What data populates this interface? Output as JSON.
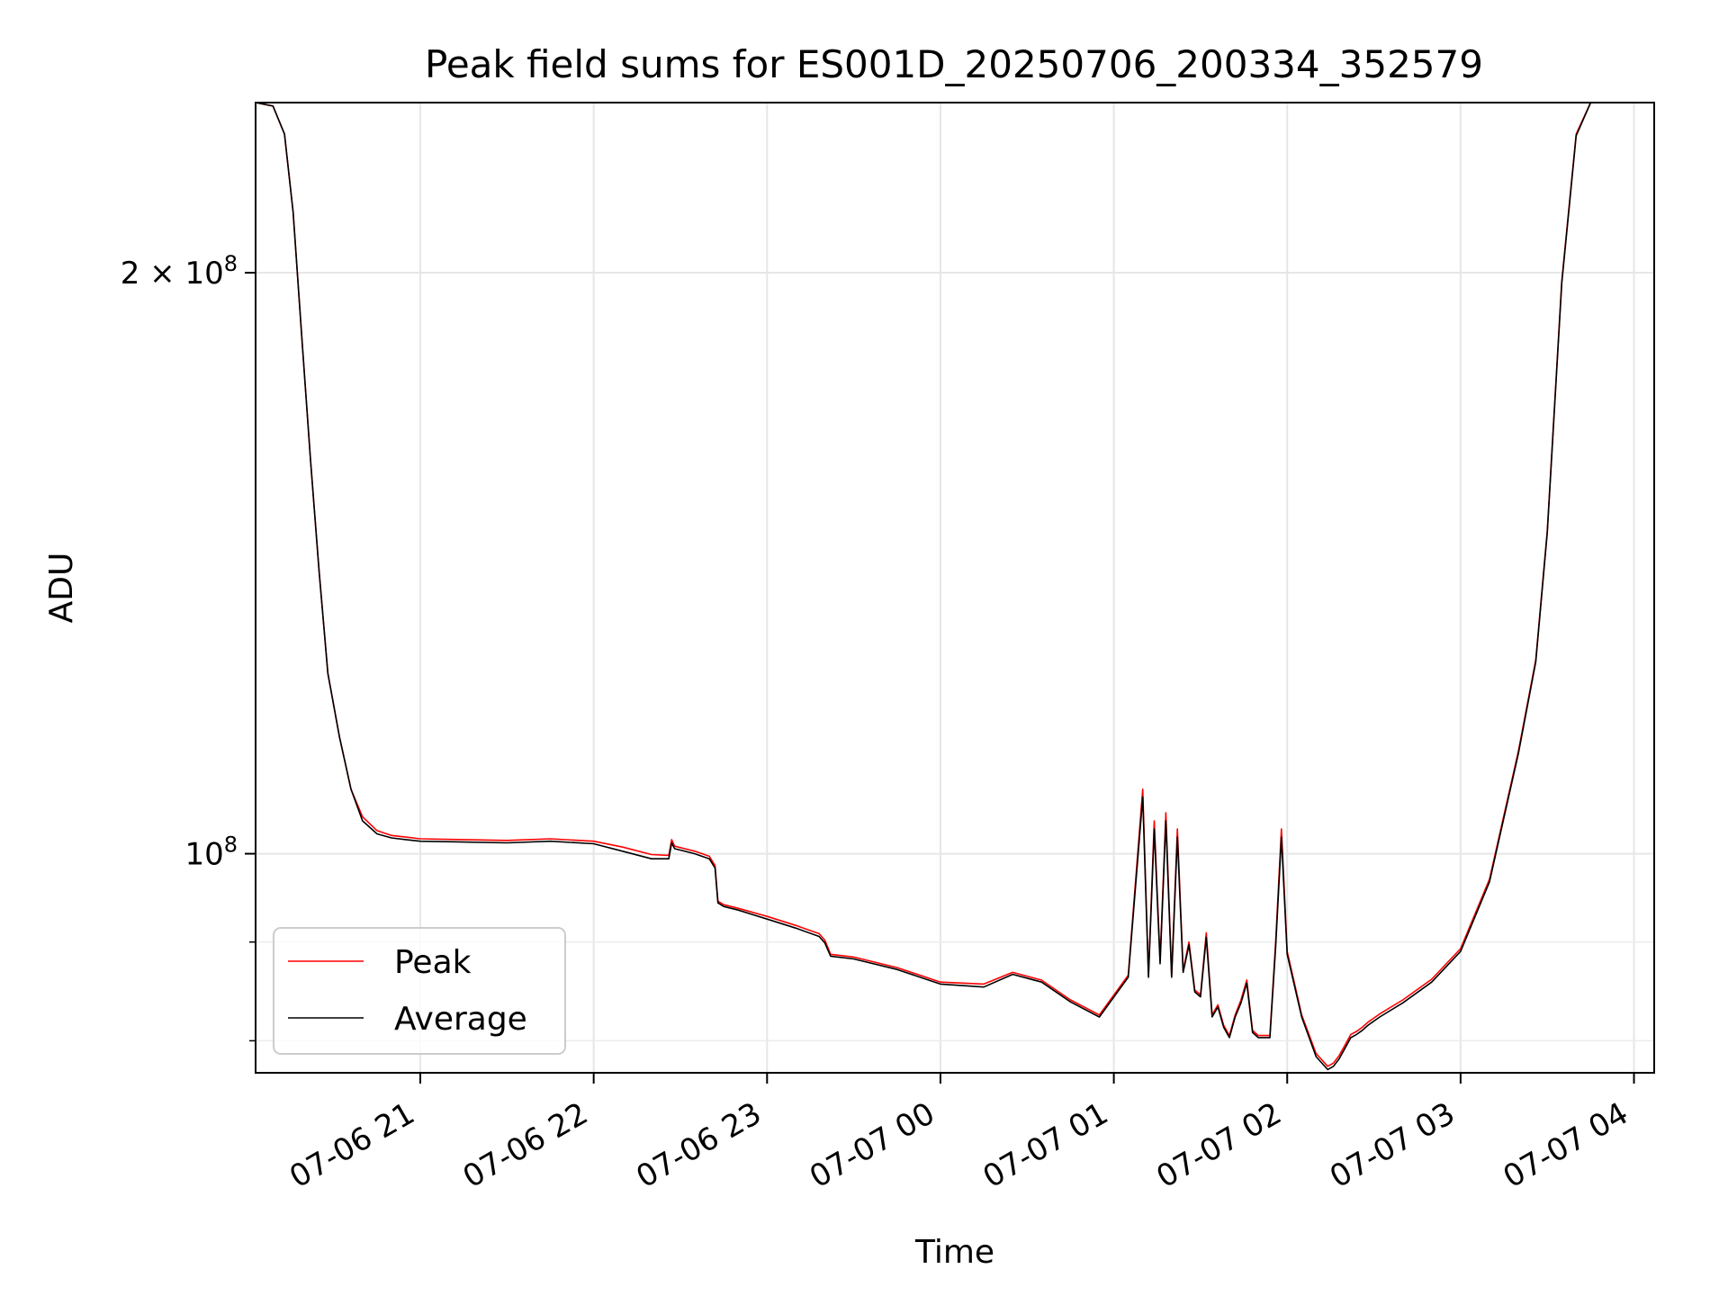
{
  "chart_data": {
    "type": "line",
    "title": "Peak field sums for ES001D_20250706_200334_352579",
    "xlabel": "Time",
    "ylabel": "ADU",
    "xlim": [
      "2025-07-06 20:03",
      "2025-07-07 04:07"
    ],
    "ylim": [
      77000000,
      245000000
    ],
    "yscale": "log",
    "grid": true,
    "legend_position": "lower-left",
    "x_ticks": [
      {
        "value": "2025-07-06 21:00",
        "label": "07-06 21"
      },
      {
        "value": "2025-07-06 22:00",
        "label": "07-06 22"
      },
      {
        "value": "2025-07-06 23:00",
        "label": "07-06 23"
      },
      {
        "value": "2025-07-07 00:00",
        "label": "07-07 00"
      },
      {
        "value": "2025-07-07 01:00",
        "label": "07-07 01"
      },
      {
        "value": "2025-07-07 02:00",
        "label": "07-07 02"
      },
      {
        "value": "2025-07-07 03:00",
        "label": "07-07 03"
      },
      {
        "value": "2025-07-07 04:00",
        "label": "07-07 04"
      }
    ],
    "y_major_ticks": [
      {
        "value": 100000000,
        "base": "10",
        "exponent": "8",
        "mantissa": ""
      },
      {
        "value": 200000000,
        "base": "10",
        "exponent": "8",
        "mantissa": "2"
      }
    ],
    "y_minor_ticks": [
      80000000,
      90000000
    ],
    "series": [
      {
        "name": "Peak",
        "color": "#ff0000",
        "x": [
          "2025-07-06 20:03",
          "2025-07-06 20:09",
          "2025-07-06 20:13",
          "2025-07-06 20:16",
          "2025-07-06 20:19",
          "2025-07-06 20:22",
          "2025-07-06 20:25",
          "2025-07-06 20:28",
          "2025-07-06 20:32",
          "2025-07-06 20:36",
          "2025-07-06 20:40",
          "2025-07-06 20:45",
          "2025-07-06 20:50",
          "2025-07-06 20:55",
          "2025-07-06 21:00",
          "2025-07-06 21:15",
          "2025-07-06 21:30",
          "2025-07-06 21:45",
          "2025-07-06 22:00",
          "2025-07-06 22:10",
          "2025-07-06 22:20",
          "2025-07-06 22:26",
          "2025-07-06 22:27",
          "2025-07-06 22:28",
          "2025-07-06 22:35",
          "2025-07-06 22:40",
          "2025-07-06 22:42",
          "2025-07-06 22:43",
          "2025-07-06 22:45",
          "2025-07-06 22:50",
          "2025-07-06 23:00",
          "2025-07-06 23:10",
          "2025-07-06 23:18",
          "2025-07-06 23:20",
          "2025-07-06 23:22",
          "2025-07-06 23:30",
          "2025-07-06 23:45",
          "2025-07-07 00:00",
          "2025-07-07 00:15",
          "2025-07-07 00:25",
          "2025-07-07 00:35",
          "2025-07-07 00:45",
          "2025-07-07 00:55",
          "2025-07-07 01:05",
          "2025-07-07 01:10",
          "2025-07-07 01:12",
          "2025-07-07 01:14",
          "2025-07-07 01:16",
          "2025-07-07 01:18",
          "2025-07-07 01:20",
          "2025-07-07 01:22",
          "2025-07-07 01:24",
          "2025-07-07 01:26",
          "2025-07-07 01:28",
          "2025-07-07 01:30",
          "2025-07-07 01:32",
          "2025-07-07 01:34",
          "2025-07-07 01:36",
          "2025-07-07 01:38",
          "2025-07-07 01:40",
          "2025-07-07 01:42",
          "2025-07-07 01:44",
          "2025-07-07 01:46",
          "2025-07-07 01:48",
          "2025-07-07 01:50",
          "2025-07-07 01:52",
          "2025-07-07 01:54",
          "2025-07-07 01:56",
          "2025-07-07 01:58",
          "2025-07-07 02:00",
          "2025-07-07 02:05",
          "2025-07-07 02:10",
          "2025-07-07 02:14",
          "2025-07-07 02:16",
          "2025-07-07 02:18",
          "2025-07-07 02:20",
          "2025-07-07 02:22",
          "2025-07-07 02:24",
          "2025-07-07 02:26",
          "2025-07-07 02:28",
          "2025-07-07 02:32",
          "2025-07-07 02:40",
          "2025-07-07 02:50",
          "2025-07-07 03:00",
          "2025-07-07 03:10",
          "2025-07-07 03:20",
          "2025-07-07 03:26",
          "2025-07-07 03:30",
          "2025-07-07 03:35",
          "2025-07-07 03:40",
          "2025-07-07 03:45",
          "2025-07-07 03:50",
          "2025-07-07 03:55",
          "2025-07-07 04:00",
          "2025-07-07 04:03",
          "2025-07-07 04:07"
        ],
        "y": [
          245000000,
          244000000,
          236000000,
          215000000,
          185000000,
          160000000,
          140000000,
          124000000,
          115000000,
          108000000,
          104500000,
          102800000,
          102200000,
          102000000,
          101800000,
          101700000,
          101600000,
          101800000,
          101500000,
          100800000,
          99900000,
          99800000,
          101700000,
          100900000,
          100300000,
          99700000,
          98600000,
          94500000,
          94100000,
          93700000,
          92800000,
          91800000,
          90900000,
          90200000,
          88700000,
          88400000,
          87300000,
          85800000,
          85600000,
          86800000,
          86000000,
          84000000,
          82500000,
          86500000,
          108000000,
          86500000,
          104000000,
          88000000,
          105000000,
          86500000,
          103000000,
          87000000,
          90000000,
          85000000,
          84500000,
          91000000,
          82500000,
          83500000,
          81500000,
          80500000,
          82500000,
          84000000,
          86000000,
          81000000,
          80500000,
          80500000,
          80500000,
          90000000,
          103000000,
          89000000,
          82500000,
          78800000,
          77600000,
          77900000,
          78600000,
          79600000,
          80600000,
          80900000,
          81300000,
          81800000,
          82600000,
          84000000,
          86100000,
          89300000,
          97000000,
          113000000,
          126000000,
          147000000,
          198000000,
          236000000,
          245000000,
          245000000,
          245000000,
          245000000,
          245000000,
          245000000
        ]
      },
      {
        "name": "Average",
        "color": "#000000",
        "x": [
          "2025-07-06 20:03",
          "2025-07-06 20:09",
          "2025-07-06 20:13",
          "2025-07-06 20:16",
          "2025-07-06 20:19",
          "2025-07-06 20:22",
          "2025-07-06 20:25",
          "2025-07-06 20:28",
          "2025-07-06 20:32",
          "2025-07-06 20:36",
          "2025-07-06 20:40",
          "2025-07-06 20:45",
          "2025-07-06 20:50",
          "2025-07-06 20:55",
          "2025-07-06 21:00",
          "2025-07-06 21:15",
          "2025-07-06 21:30",
          "2025-07-06 21:45",
          "2025-07-06 22:00",
          "2025-07-06 22:10",
          "2025-07-06 22:20",
          "2025-07-06 22:26",
          "2025-07-06 22:27",
          "2025-07-06 22:28",
          "2025-07-06 22:35",
          "2025-07-06 22:40",
          "2025-07-06 22:42",
          "2025-07-06 22:43",
          "2025-07-06 22:45",
          "2025-07-06 22:50",
          "2025-07-06 23:00",
          "2025-07-06 23:10",
          "2025-07-06 23:18",
          "2025-07-06 23:20",
          "2025-07-06 23:22",
          "2025-07-06 23:30",
          "2025-07-06 23:45",
          "2025-07-07 00:00",
          "2025-07-07 00:15",
          "2025-07-07 00:25",
          "2025-07-07 00:35",
          "2025-07-07 00:45",
          "2025-07-07 00:55",
          "2025-07-07 01:05",
          "2025-07-07 01:10",
          "2025-07-07 01:12",
          "2025-07-07 01:14",
          "2025-07-07 01:16",
          "2025-07-07 01:18",
          "2025-07-07 01:20",
          "2025-07-07 01:22",
          "2025-07-07 01:24",
          "2025-07-07 01:26",
          "2025-07-07 01:28",
          "2025-07-07 01:30",
          "2025-07-07 01:32",
          "2025-07-07 01:34",
          "2025-07-07 01:36",
          "2025-07-07 01:38",
          "2025-07-07 01:40",
          "2025-07-07 01:42",
          "2025-07-07 01:44",
          "2025-07-07 01:46",
          "2025-07-07 01:48",
          "2025-07-07 01:50",
          "2025-07-07 01:52",
          "2025-07-07 01:54",
          "2025-07-07 01:56",
          "2025-07-07 01:58",
          "2025-07-07 02:00",
          "2025-07-07 02:05",
          "2025-07-07 02:10",
          "2025-07-07 02:14",
          "2025-07-07 02:16",
          "2025-07-07 02:18",
          "2025-07-07 02:20",
          "2025-07-07 02:22",
          "2025-07-07 02:24",
          "2025-07-07 02:26",
          "2025-07-07 02:28",
          "2025-07-07 02:32",
          "2025-07-07 02:40",
          "2025-07-07 02:50",
          "2025-07-07 03:00",
          "2025-07-07 03:10",
          "2025-07-07 03:20",
          "2025-07-07 03:26",
          "2025-07-07 03:30",
          "2025-07-07 03:35",
          "2025-07-07 03:40",
          "2025-07-07 03:45",
          "2025-07-07 03:50",
          "2025-07-07 03:55",
          "2025-07-07 04:00",
          "2025-07-07 04:03",
          "2025-07-07 04:07"
        ],
        "y": [
          245000000,
          244000000,
          236000000,
          215000000,
          185000000,
          160000000,
          140000000,
          124000000,
          115000000,
          108000000,
          104000000,
          102400000,
          101900000,
          101700000,
          101500000,
          101400000,
          101300000,
          101500000,
          101200000,
          100300000,
          99400000,
          99400000,
          101300000,
          100600000,
          100000000,
          99400000,
          98300000,
          94300000,
          93900000,
          93500000,
          92500000,
          91500000,
          90600000,
          89900000,
          88500000,
          88200000,
          87100000,
          85600000,
          85300000,
          86600000,
          85800000,
          83800000,
          82300000,
          86300000,
          107000000,
          86300000,
          103000000,
          87700000,
          104000000,
          86300000,
          102000000,
          86800000,
          89700000,
          84800000,
          84300000,
          90500000,
          82300000,
          83300000,
          81300000,
          80300000,
          82300000,
          83700000,
          85700000,
          80800000,
          80300000,
          80300000,
          80300000,
          89500000,
          102000000,
          88700000,
          82300000,
          78500000,
          77300000,
          77600000,
          78300000,
          79300000,
          80300000,
          80600000,
          81000000,
          81500000,
          82300000,
          83700000,
          85800000,
          89000000,
          96700000,
          112700000,
          125700000,
          146700000,
          197500000,
          235500000,
          245000000,
          245000000,
          245000000,
          245000000,
          245000000,
          245000000
        ]
      }
    ]
  }
}
